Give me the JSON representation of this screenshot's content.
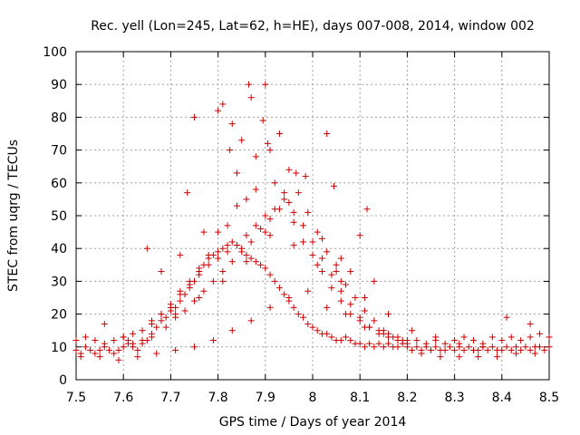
{
  "chart_data": {
    "type": "scatter",
    "title": "Rec. yell (Lon=245, Lat=62, h=HE), days 007-008, 2014, window 002",
    "xlabel": "GPS time / Days of year 2014",
    "ylabel": "STEC from uqrg / TECUs",
    "xlim": [
      7.5,
      8.5
    ],
    "ylim": [
      0,
      100
    ],
    "xticks": [
      "7.5",
      "7.6",
      "7.7",
      "7.8",
      "7.9",
      "8",
      "8.1",
      "8.2",
      "8.3",
      "8.4",
      "8.5"
    ],
    "yticks": [
      "0",
      "10",
      "20",
      "30",
      "40",
      "50",
      "60",
      "70",
      "80",
      "90",
      "100"
    ],
    "grid": true,
    "marker": "+",
    "colors": {
      "points": "#cc0000"
    },
    "series": [
      {
        "x": [
          7.5,
          7.51,
          7.52,
          7.53,
          7.54,
          7.55,
          7.56,
          7.57,
          7.58,
          7.59,
          7.6,
          7.61,
          7.62,
          7.63,
          7.64,
          7.65,
          7.66,
          7.67,
          7.68,
          7.69,
          7.7,
          7.71,
          7.72,
          7.73,
          7.74,
          7.75,
          7.76,
          7.77,
          7.78,
          7.79,
          7.8,
          7.81,
          7.82,
          7.83,
          7.84,
          7.85,
          7.86,
          7.87,
          7.88,
          7.89,
          7.9,
          7.91,
          7.92,
          7.93,
          7.94,
          7.95,
          7.96,
          7.97,
          7.98,
          7.99,
          8.0,
          8.01,
          8.02,
          8.03,
          8.04,
          8.05,
          8.06,
          8.07,
          8.08,
          8.09,
          8.1,
          8.11,
          8.12,
          8.13,
          8.14,
          8.15,
          8.16,
          8.17,
          8.18,
          8.19,
          8.2,
          8.21,
          8.22,
          8.23,
          8.24,
          8.25,
          8.26,
          8.27,
          8.28,
          8.29,
          8.3,
          8.31,
          8.32,
          8.33,
          8.34,
          8.35,
          8.36,
          8.37,
          8.38,
          8.39,
          8.4,
          8.41,
          8.42,
          8.43,
          8.44,
          8.45,
          8.46,
          8.47,
          8.48,
          8.49,
          8.5,
          7.5,
          7.52,
          7.54,
          7.56,
          7.58,
          7.6,
          7.62,
          7.64,
          7.66,
          7.68,
          7.7,
          7.72,
          7.74,
          7.76,
          7.78,
          7.8,
          7.82,
          7.84,
          7.86,
          7.88,
          7.9,
          7.92,
          7.94,
          7.96,
          7.98,
          8.0,
          8.02,
          8.04,
          8.06,
          8.08,
          8.1,
          8.12,
          8.14,
          8.16,
          8.18,
          8.2,
          8.22,
          8.24,
          8.26,
          8.28,
          8.3,
          8.32,
          8.34,
          8.36,
          8.38,
          8.4,
          8.42,
          8.44,
          8.46,
          8.48,
          8.5,
          7.51,
          7.55,
          7.59,
          7.63,
          7.67,
          7.71,
          7.75,
          7.79,
          7.83,
          7.87,
          7.91,
          7.95,
          7.99,
          8.03,
          8.07,
          8.11,
          8.15,
          8.19,
          8.23,
          8.27,
          8.31,
          8.35,
          8.39,
          8.43,
          8.47,
          7.65,
          7.68,
          7.72,
          7.735,
          7.75,
          7.77,
          7.8,
          7.81,
          7.825,
          7.83,
          7.84,
          7.85,
          7.865,
          7.87,
          7.88,
          7.895,
          7.9,
          7.905,
          7.91,
          7.93,
          7.95,
          7.965,
          7.985,
          8.02,
          8.03,
          8.045,
          8.06,
          8.1,
          8.115,
          8.13,
          8.08,
          8.05,
          7.6,
          7.62,
          7.64,
          7.66,
          7.68,
          7.7,
          7.72,
          7.74,
          7.76,
          7.78,
          7.8,
          7.82,
          7.84,
          7.86,
          7.88,
          7.9,
          7.92,
          7.94,
          7.96,
          7.98,
          8.0,
          8.02,
          8.04,
          8.06,
          8.08,
          8.1,
          8.12,
          8.14,
          8.16,
          8.18,
          8.2,
          7.69,
          7.71,
          7.73,
          7.75,
          7.77,
          7.79,
          7.81,
          7.83,
          7.85,
          7.87,
          7.89,
          7.91,
          7.93,
          7.95,
          7.97,
          7.99,
          8.01,
          8.03,
          8.05,
          8.07,
          8.09,
          8.11,
          8.13,
          8.15,
          8.17,
          7.56,
          7.61,
          7.66,
          7.71,
          7.76,
          7.81,
          7.86,
          7.91,
          7.96,
          8.01,
          8.06,
          8.11,
          8.16,
          8.21,
          8.26,
          8.31,
          8.36,
          8.41,
          8.46
        ],
        "y": [
          9,
          8,
          10,
          9,
          8,
          9,
          10,
          9,
          8,
          9,
          10,
          11,
          10,
          9,
          11,
          12,
          14,
          16,
          18,
          19,
          21,
          22,
          24,
          26,
          28,
          30,
          33,
          35,
          37,
          38,
          39,
          40,
          41,
          42,
          41,
          40,
          38,
          37,
          36,
          35,
          34,
          32,
          30,
          28,
          26,
          24,
          22,
          20,
          19,
          17,
          16,
          15,
          14,
          14,
          13,
          12,
          12,
          13,
          12,
          11,
          11,
          10,
          11,
          10,
          11,
          10,
          11,
          10,
          10,
          11,
          10,
          9,
          10,
          9,
          10,
          9,
          10,
          9,
          9,
          10,
          9,
          10,
          9,
          10,
          9,
          9,
          10,
          9,
          10,
          9,
          9,
          10,
          9,
          10,
          9,
          10,
          9,
          10,
          10,
          9,
          10,
          12,
          13,
          12,
          11,
          12,
          13,
          11,
          12,
          17,
          20,
          22,
          27,
          30,
          34,
          38,
          45,
          47,
          53,
          55,
          58,
          45,
          60,
          57,
          48,
          42,
          38,
          33,
          28,
          24,
          20,
          18,
          16,
          15,
          14,
          13,
          12,
          12,
          11,
          12,
          11,
          12,
          13,
          12,
          11,
          13,
          12,
          13,
          12,
          13,
          14,
          13,
          7,
          7,
          6,
          7,
          8,
          9,
          10,
          12,
          15,
          18,
          22,
          25,
          27,
          22,
          20,
          16,
          14,
          12,
          8,
          7,
          7,
          7,
          7,
          8,
          8,
          40,
          33,
          38,
          57,
          80,
          45,
          82,
          84,
          70,
          78,
          63,
          73,
          90,
          86,
          68,
          79,
          90,
          72,
          70,
          75,
          64,
          63,
          62,
          43,
          75,
          59,
          37,
          44,
          52,
          30,
          33,
          35,
          13,
          14,
          15,
          18,
          20,
          23,
          26,
          29,
          32,
          35,
          37,
          39,
          41,
          44,
          47,
          50,
          52,
          55,
          51,
          47,
          42,
          37,
          32,
          27,
          23,
          19,
          16,
          14,
          13,
          12,
          11,
          16,
          19,
          21,
          24,
          27,
          30,
          33,
          36,
          39,
          42,
          46,
          49,
          52,
          54,
          57,
          51,
          45,
          39,
          33,
          29,
          25,
          21,
          18,
          15,
          13,
          17,
          12,
          13,
          20,
          25,
          30,
          36,
          44,
          41,
          35,
          30,
          25,
          20,
          15,
          13,
          11,
          10,
          19,
          17
        ]
      }
    ]
  }
}
